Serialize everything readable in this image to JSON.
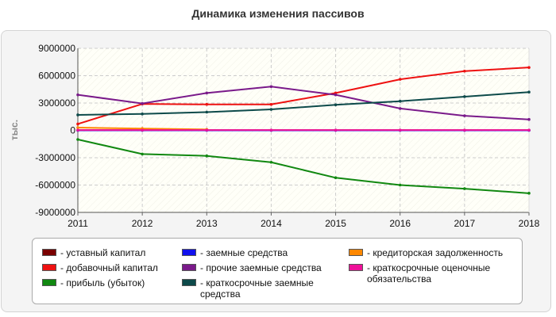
{
  "title": "Динамика изменения пассивов",
  "chart_data": {
    "type": "line",
    "title": "Динамика изменения пассивов",
    "xlabel": "",
    "ylabel": "тыс.",
    "x": [
      "2011",
      "2012",
      "2013",
      "2014",
      "2015",
      "2016",
      "2017",
      "2018"
    ],
    "ylim": [
      -9000000,
      9000000
    ],
    "yticks": [
      9000000,
      6000000,
      3000000,
      0,
      -3000000,
      -6000000,
      -9000000
    ],
    "yticks_labels": [
      "9000000",
      "6000000",
      "3000000",
      "0",
      "-3000000",
      "-6000000",
      "-9000000"
    ],
    "grid": true,
    "legend_position": "bottom",
    "series": [
      {
        "name": "- уставный капитал",
        "color": "#7a0000",
        "values": [
          20000,
          20000,
          20000,
          20000,
          20000,
          20000,
          20000,
          20000
        ]
      },
      {
        "name": "- добавочный капитал",
        "color": "#ee1111",
        "values": [
          700000,
          2900000,
          2850000,
          2850000,
          4100000,
          5600000,
          6500000,
          6900000
        ]
      },
      {
        "name": "- прибыль (убыток)",
        "color": "#118811",
        "values": [
          -1000000,
          -2600000,
          -2800000,
          -3500000,
          -5200000,
          -6000000,
          -6400000,
          -6900000
        ]
      },
      {
        "name": "- заемные средства",
        "color": "#1111ee",
        "values": [
          0,
          0,
          0,
          0,
          0,
          0,
          0,
          0
        ]
      },
      {
        "name": "- прочие заемные средства",
        "color": "#7a1a8a",
        "values": [
          3900000,
          2950000,
          4100000,
          4800000,
          3900000,
          2400000,
          1600000,
          1200000
        ]
      },
      {
        "name": "- краткосрочные заемные средства",
        "color": "#0d4a4a",
        "values": [
          1700000,
          1800000,
          2000000,
          2300000,
          2800000,
          3200000,
          3700000,
          4200000
        ]
      },
      {
        "name": "- кредиторская задолженность",
        "color": "#ff8800",
        "values": [
          300000,
          200000,
          100000,
          null,
          null,
          null,
          null,
          null
        ]
      },
      {
        "name": "- краткосрочные оценочные обязательства",
        "color": "#ee1199",
        "values": [
          30000,
          30000,
          30000,
          30000,
          30000,
          30000,
          30000,
          30000
        ]
      }
    ]
  },
  "legend": {
    "items": [
      {
        "label": "- уставный капитал",
        "color": "#7a0000"
      },
      {
        "label": "- добавочный капитал",
        "color": "#ee1111"
      },
      {
        "label": "- прибыль (убыток)",
        "color": "#118811"
      },
      {
        "label": "- заемные средства",
        "color": "#1111ee"
      },
      {
        "label": "- прочие заемные средства",
        "color": "#7a1a8a"
      },
      {
        "label": "- краткосрочные заемные средства",
        "color": "#0d4a4a"
      },
      {
        "label": "- кредиторская задолженность",
        "color": "#ff8800"
      },
      {
        "label": "- краткосрочные оценочные обязательства",
        "color": "#ee1199"
      }
    ]
  }
}
